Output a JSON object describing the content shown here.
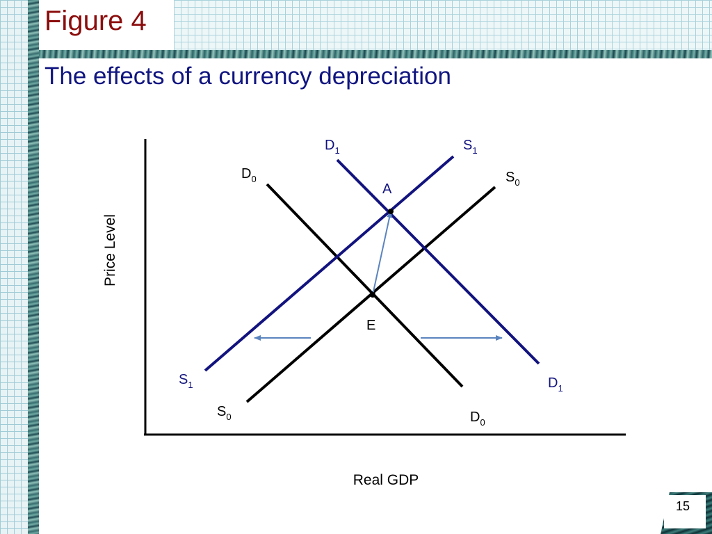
{
  "slide": {
    "figure_title": "Figure 4",
    "subtitle": "The effects of a currency depreciation",
    "page_number": "15"
  },
  "diagram": {
    "y_axis_label": "Price Level",
    "x_axis_label": "Real GDP",
    "curves": {
      "D0": {
        "letter": "D",
        "sub": "0",
        "color": "#000000"
      },
      "S0": {
        "letter": "S",
        "sub": "0",
        "color": "#000000"
      },
      "D1": {
        "letter": "D",
        "sub": "1",
        "color": "#12137e"
      },
      "S1": {
        "letter": "S",
        "sub": "1",
        "color": "#12137e"
      }
    },
    "points": {
      "E": "E",
      "A": "A"
    },
    "arrow_color": "#5b84bf"
  }
}
